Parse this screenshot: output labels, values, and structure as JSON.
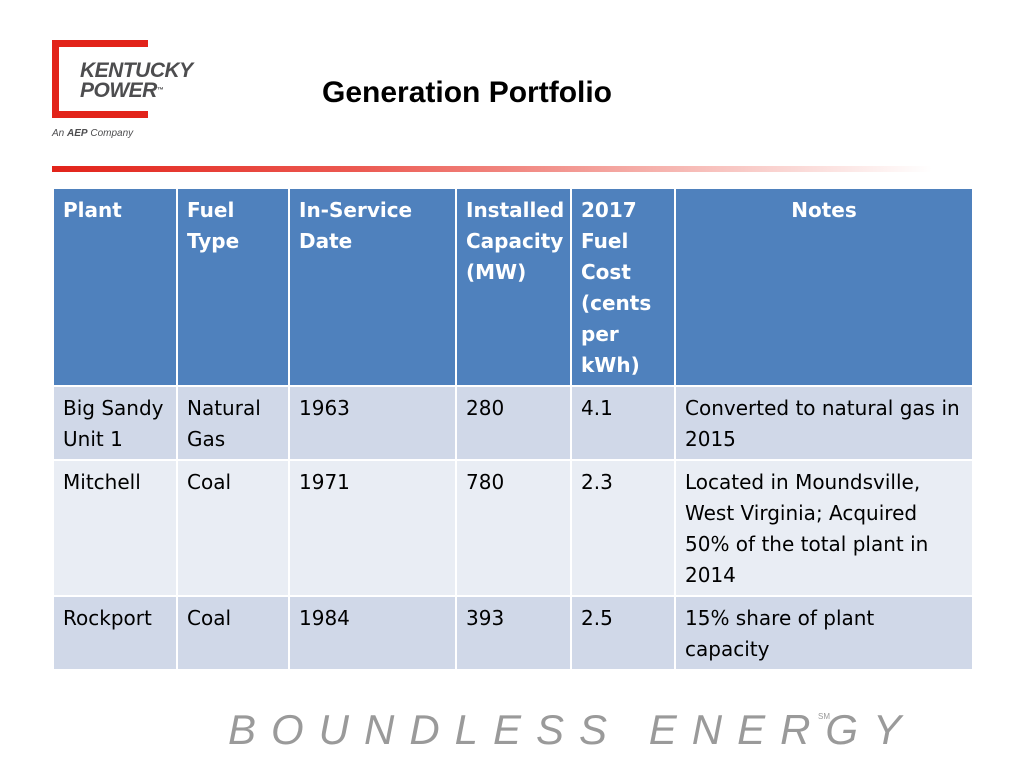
{
  "logo": {
    "line1": "KENTUCKY",
    "line2": "POWER",
    "tm": "™",
    "tag_prefix": "An",
    "tag_brand": "AEP",
    "tag_suffix": "Company",
    "color": "#e2231a"
  },
  "title": "Generation Portfolio",
  "table": {
    "headers": {
      "plant": "Plant",
      "fuel_type": "Fuel Type",
      "in_service": "In-Service Date",
      "capacity": "Installed Capacity (MW)",
      "fuel_cost": "2017 Fuel Cost (cents per kWh)",
      "notes": "Notes"
    },
    "rows": [
      {
        "plant": "Big Sandy Unit 1",
        "fuel_type": "Natural Gas",
        "in_service": "1963",
        "capacity": "280",
        "fuel_cost": "4.1",
        "notes": "Converted to natural gas in 2015"
      },
      {
        "plant": "Mitchell",
        "fuel_type": "Coal",
        "in_service": "1971",
        "capacity": "780",
        "fuel_cost": "2.3",
        "notes": "Located in Moundsville, West Virginia; Acquired 50% of the total plant in 2014"
      },
      {
        "plant": "Rockport",
        "fuel_type": "Coal",
        "in_service": "1984",
        "capacity": "393",
        "fuel_cost": "2.5",
        "notes": "15% share of plant capacity"
      }
    ]
  },
  "tagline": "BOUNDLESS ENERGY",
  "tagline_mark": "SM",
  "colors": {
    "header_bg": "#4f81bd",
    "row_odd": "#d0d8e8",
    "row_even": "#e9edf4",
    "accent": "#e2231a"
  }
}
